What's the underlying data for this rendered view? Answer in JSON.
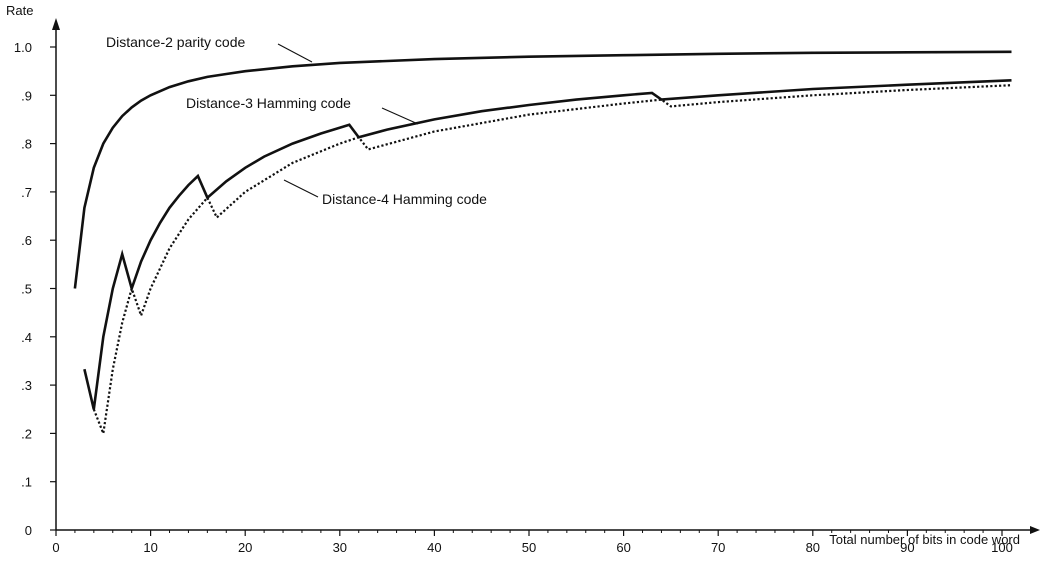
{
  "chart_data": {
    "type": "line",
    "title": "",
    "xlabel": "Total number of bits in code word",
    "ylabel": "Rate",
    "xlim": [
      0,
      101
    ],
    "ylim": [
      0,
      1.0
    ],
    "x_ticks": [
      0,
      10,
      20,
      30,
      40,
      50,
      60,
      70,
      80,
      90,
      100
    ],
    "x_tick_labels": [
      "0",
      "10",
      "20",
      "30",
      "40",
      "50",
      "60",
      "70",
      "80",
      "90",
      "100"
    ],
    "y_ticks": [
      0,
      0.1,
      0.2,
      0.3,
      0.4,
      0.5,
      0.6,
      0.7,
      0.8,
      0.9,
      1.0
    ],
    "y_tick_labels": [
      "0",
      ".1",
      ".2",
      ".3",
      ".4",
      ".5",
      ".6",
      ".7",
      ".8",
      ".9",
      "1.0"
    ],
    "grid": false,
    "series": [
      {
        "name": "Distance-2 parity code",
        "style": "solid",
        "x": [
          2,
          3,
          4,
          5,
          6,
          7,
          8,
          9,
          10,
          12,
          14,
          16,
          18,
          20,
          25,
          30,
          40,
          50,
          60,
          70,
          80,
          90,
          101
        ],
        "y": [
          0.5,
          0.667,
          0.75,
          0.8,
          0.833,
          0.857,
          0.875,
          0.889,
          0.9,
          0.917,
          0.929,
          0.938,
          0.944,
          0.95,
          0.96,
          0.967,
          0.975,
          0.98,
          0.983,
          0.986,
          0.988,
          0.989,
          0.99
        ]
      },
      {
        "name": "Distance-3 Hamming code",
        "style": "solid",
        "x": [
          3,
          4,
          5,
          6,
          7,
          8,
          9,
          10,
          11,
          12,
          13,
          14,
          15,
          16,
          18,
          20,
          22,
          25,
          28,
          31,
          32,
          35,
          40,
          45,
          50,
          55,
          60,
          63,
          64,
          70,
          80,
          90,
          101
        ],
        "y": [
          0.333,
          0.25,
          0.4,
          0.5,
          0.571,
          0.5,
          0.556,
          0.6,
          0.636,
          0.667,
          0.692,
          0.714,
          0.733,
          0.688,
          0.722,
          0.75,
          0.773,
          0.8,
          0.821,
          0.839,
          0.813,
          0.829,
          0.85,
          0.867,
          0.88,
          0.891,
          0.9,
          0.905,
          0.891,
          0.9,
          0.913,
          0.922,
          0.931
        ]
      },
      {
        "name": "Distance-4 Hamming code",
        "style": "dotted",
        "x": [
          4,
          5,
          6,
          7,
          8,
          9,
          10,
          12,
          14,
          16,
          17,
          20,
          25,
          30,
          32,
          33,
          40,
          50,
          60,
          64,
          65,
          70,
          80,
          90,
          101
        ],
        "y": [
          0.25,
          0.2,
          0.333,
          0.429,
          0.5,
          0.444,
          0.5,
          0.583,
          0.643,
          0.688,
          0.647,
          0.7,
          0.76,
          0.8,
          0.813,
          0.788,
          0.825,
          0.86,
          0.883,
          0.891,
          0.877,
          0.886,
          0.9,
          0.911,
          0.921
        ]
      }
    ],
    "annotations": [
      {
        "text": "Distance-2 parity code",
        "series": 0
      },
      {
        "text": "Distance-3 Hamming code",
        "series": 1
      },
      {
        "text": "Distance-4 Hamming code",
        "series": 2
      }
    ]
  }
}
